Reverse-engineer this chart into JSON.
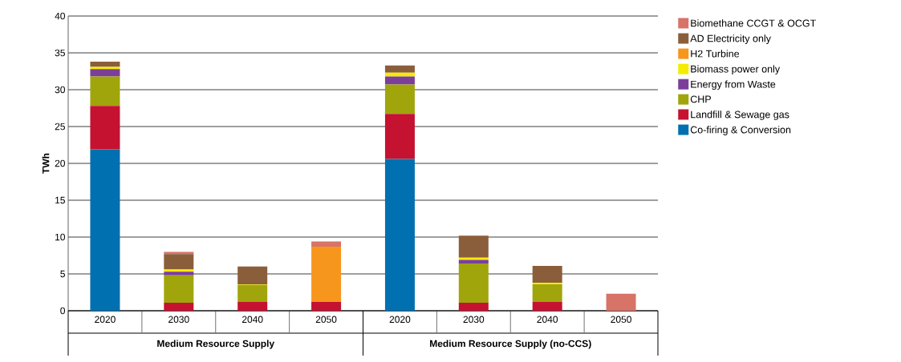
{
  "chart_data": {
    "type": "bar",
    "stacked": true,
    "ylabel": "TWh",
    "categories": [
      "2020",
      "2030",
      "2040",
      "2050",
      "2020",
      "2030",
      "2040",
      "2050"
    ],
    "annotations": [
      "Medium Resource Supply",
      "Medium Resource Supply (no-CCS)"
    ],
    "ylim": [
      0,
      40
    ],
    "yticks": [
      0,
      5,
      10,
      15,
      20,
      25,
      30,
      35,
      40
    ],
    "grid": "y",
    "legend": "right",
    "series": [
      {
        "name": "Co-firing & Conversion",
        "color": "#0070b0",
        "values": [
          21.9,
          0,
          0,
          0,
          20.6,
          0,
          0,
          0
        ]
      },
      {
        "name": "Landfill & Sewage gas",
        "color": "#c41230",
        "values": [
          5.9,
          1.1,
          1.2,
          1.2,
          6.1,
          1.1,
          1.2,
          0
        ]
      },
      {
        "name": "CHP",
        "color": "#a0a50c",
        "values": [
          4.0,
          3.7,
          2.3,
          0,
          4.0,
          5.3,
          2.4,
          0
        ]
      },
      {
        "name": "Energy from Waste",
        "color": "#7b3f9a",
        "values": [
          1.0,
          0.5,
          0,
          0,
          1.1,
          0.5,
          0,
          0
        ]
      },
      {
        "name": "Biomass power only",
        "color": "#f5ec00",
        "values": [
          0.3,
          0.3,
          0.1,
          0,
          0.5,
          0.3,
          0.2,
          0
        ]
      },
      {
        "name": "H2 Turbine",
        "color": "#f7961d",
        "values": [
          0,
          0,
          0,
          7.5,
          0,
          0,
          0,
          0
        ]
      },
      {
        "name": "AD Electricity only",
        "color": "#8b5e3b",
        "values": [
          0.7,
          2.1,
          2.4,
          0,
          1.0,
          3.0,
          2.3,
          0
        ]
      },
      {
        "name": "Biomethane CCGT & OCGT",
        "color": "#d87368",
        "values": [
          0,
          0.3,
          0,
          0.7,
          0,
          0,
          0,
          2.3
        ]
      }
    ]
  }
}
